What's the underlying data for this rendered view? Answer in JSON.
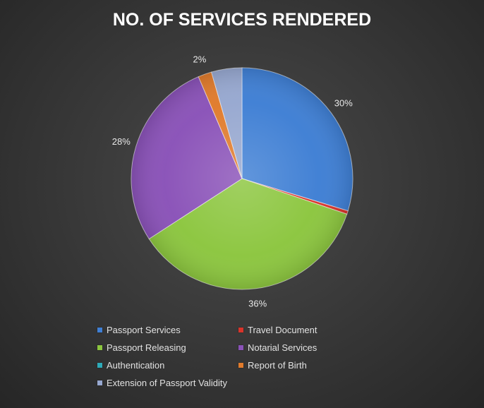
{
  "chart_data": {
    "type": "pie",
    "title": "NO. OF SERVICES RENDERED",
    "legend_position": "bottom",
    "categories": [
      "Passport Services",
      "Travel Document",
      "Passport Releasing",
      "Notarial Services",
      "Authentication",
      "Report of Birth",
      "Extension of Passport Validity"
    ],
    "values": [
      30,
      0.5,
      36,
      28,
      0,
      2,
      4.5
    ],
    "data_labels": [
      "30%",
      "",
      "36%",
      "28%",
      "",
      "2%",
      ""
    ],
    "colors": [
      "#3f7fd4",
      "#d9342a",
      "#8cc63f",
      "#8a52b8",
      "#2eaab8",
      "#e07b2c",
      "#97a8d0"
    ],
    "start_angle_deg": 0,
    "direction": "clockwise"
  }
}
